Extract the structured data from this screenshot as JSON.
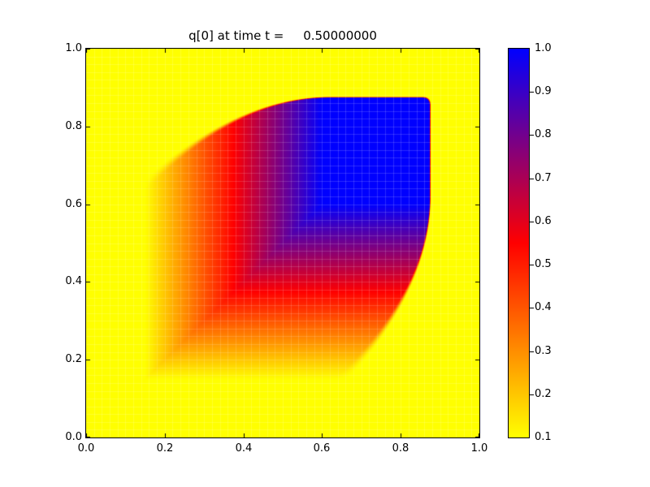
{
  "figure": {
    "title": "q[0] at time t =     0.50000000",
    "background_color": "#ffffff"
  },
  "axes": {
    "x_tick_labels": [
      "0.0",
      "0.2",
      "0.4",
      "0.6",
      "0.8",
      "1.0"
    ],
    "y_tick_labels": [
      "0.0",
      "0.2",
      "0.4",
      "0.6",
      "0.8",
      "1.0"
    ],
    "xlim": [
      0.0,
      1.0
    ],
    "ylim": [
      0.0,
      1.0
    ]
  },
  "colorbar": {
    "tick_labels": [
      "1.0",
      "0.9",
      "0.8",
      "0.7",
      "0.6",
      "0.5",
      "0.4",
      "0.3",
      "0.2",
      "0.1"
    ],
    "vmin": 0.1,
    "vmax": 1.0,
    "gradient_bottom": "#ffff00",
    "gradient_middle": "#ff0000",
    "gradient_top": "#0000ff"
  },
  "chart_data": {
    "type": "heatmap",
    "title": "q[0] at time t =     0.50000000",
    "time_shown": "0.50000000",
    "xlabel": "",
    "ylabel": "",
    "xlim": [
      0.0,
      1.0
    ],
    "ylim": [
      0.0,
      1.0
    ],
    "clim": [
      0.1,
      1.0
    ],
    "background_value": 0.1,
    "plateau_value": 1.0,
    "colormap_stops": [
      {
        "value": 0.1,
        "color": "#ffff00"
      },
      {
        "value": 0.55,
        "color": "#ff0000"
      },
      {
        "value": 1.0,
        "color": "#0000ff"
      }
    ],
    "field_model": {
      "description": "2D Burgers-type pulse at t=0.5: q=0.1+(min(f(x),f(y))-0.1)*mask; rarefaction ramp f(s)=clamp(2*(s-0.1),0.1,1.0) soft on left/bottom edges; sharp shock front on top/right at xs(t)=ys(t)=0.875-0.225*clamp((0.62-t)/0.47,0,1)^2 with rounded corner at (0.875,0.875)",
      "ramp_start": 0.15,
      "ramp_end": 0.6,
      "shock_max": 0.875,
      "shock_min": 0.65,
      "shock_knee": 0.62,
      "shock_span": 0.47,
      "shock_exponent": 2,
      "edge_width_sharp": 0.004,
      "edge_width_soft": 0.035,
      "corner_smooth": 0.02
    },
    "sample_values": {
      "note": "q sampled on 11x11 grid (x,y = 0..1 step 0.1), rows bottom to top",
      "x": [
        0.0,
        0.1,
        0.2,
        0.3,
        0.4,
        0.5,
        0.6,
        0.7,
        0.8,
        0.9,
        1.0
      ],
      "y": [
        0.0,
        0.1,
        0.2,
        0.3,
        0.4,
        0.5,
        0.6,
        0.7,
        0.8,
        0.9,
        1.0
      ],
      "q": [
        [
          0.1,
          0.1,
          0.1,
          0.1,
          0.1,
          0.1,
          0.1,
          0.1,
          0.1,
          0.1,
          0.1
        ],
        [
          0.1,
          0.1,
          0.1,
          0.1,
          0.1,
          0.1,
          0.1,
          0.1,
          0.1,
          0.1,
          0.1
        ],
        [
          0.1,
          0.1,
          0.2,
          0.2,
          0.2,
          0.2,
          0.2,
          0.2,
          0.1,
          0.1,
          0.1
        ],
        [
          0.1,
          0.1,
          0.2,
          0.4,
          0.4,
          0.4,
          0.4,
          0.4,
          0.1,
          0.1,
          0.1
        ],
        [
          0.1,
          0.1,
          0.2,
          0.4,
          0.6,
          0.6,
          0.6,
          0.6,
          0.6,
          0.1,
          0.1
        ],
        [
          0.1,
          0.1,
          0.2,
          0.4,
          0.6,
          0.8,
          0.8,
          0.8,
          0.8,
          0.1,
          0.1
        ],
        [
          0.1,
          0.1,
          0.2,
          0.4,
          0.6,
          0.8,
          1.0,
          1.0,
          1.0,
          0.1,
          0.1
        ],
        [
          0.1,
          0.1,
          0.2,
          0.4,
          0.6,
          0.8,
          1.0,
          1.0,
          1.0,
          0.1,
          0.1
        ],
        [
          0.1,
          0.1,
          0.2,
          0.4,
          0.6,
          0.8,
          1.0,
          1.0,
          1.0,
          0.1,
          0.1
        ],
        [
          0.1,
          0.1,
          0.1,
          0.1,
          0.1,
          0.1,
          0.1,
          0.1,
          0.1,
          0.1,
          0.1
        ],
        [
          0.1,
          0.1,
          0.1,
          0.1,
          0.1,
          0.1,
          0.1,
          0.1,
          0.1,
          0.1,
          0.1
        ]
      ]
    },
    "grid_overlay": {
      "spacing": 0.02,
      "color": "rgba(255,255,255,0.16)"
    },
    "legend_position": "colorbar-right"
  }
}
